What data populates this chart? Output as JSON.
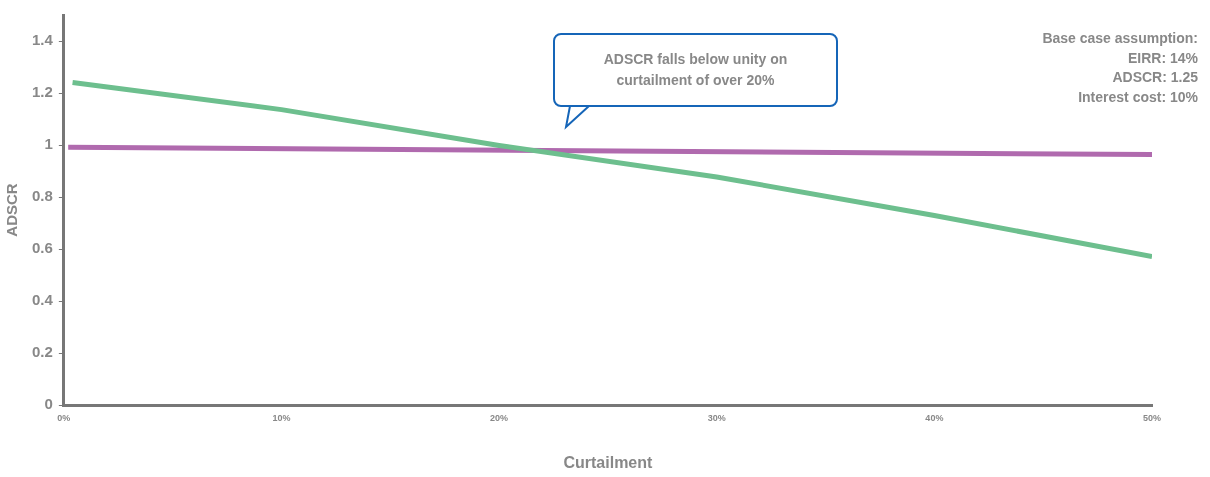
{
  "chart_data": {
    "type": "line",
    "xlabel": "Curtailment",
    "ylabel": "ADSCR",
    "x": [
      0.4,
      10,
      20,
      30,
      40,
      50
    ],
    "series": [
      {
        "color": "#6dbf8e",
        "values": [
          1.24,
          1.136,
          0.998,
          0.877,
          0.729,
          0.571
        ]
      },
      {
        "color": "#b06aae",
        "x": [
          0.2,
          50
        ],
        "values": [
          0.991,
          0.963
        ]
      }
    ],
    "xlim": [
      0,
      50
    ],
    "xticks": [
      {
        "value": 0,
        "label": "0%"
      },
      {
        "value": 10,
        "label": "10%"
      },
      {
        "value": 20,
        "label": "20%"
      },
      {
        "value": 30,
        "label": "30%"
      },
      {
        "value": 40,
        "label": "40%"
      },
      {
        "value": 50,
        "label": "50%"
      }
    ],
    "ylim": [
      0,
      1.5
    ],
    "yticks": [
      0,
      0.2,
      0.4,
      0.6,
      0.8,
      1,
      1.2,
      1.4
    ],
    "grid": false,
    "legend": false,
    "marker": "none",
    "line_style": "solid",
    "annotations": [
      "ADSCR falls below unity on\ncurtailment of over 20%",
      "Base case assumption:\nEIRR: 14%\nADSCR: 1.25\nInterest cost: 10%"
    ]
  }
}
